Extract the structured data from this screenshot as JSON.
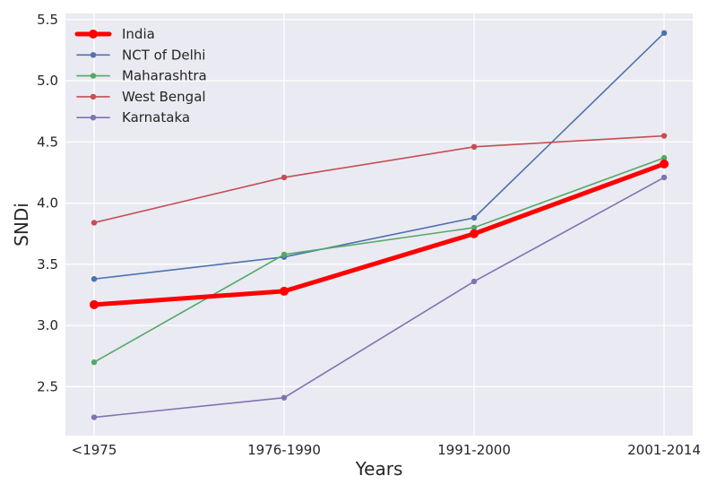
{
  "chart_data": {
    "type": "line",
    "title": "",
    "xlabel": "Years",
    "ylabel": "SNDi",
    "categories": [
      "<1975",
      "1976-1990",
      "1991-2000",
      "2001-2014"
    ],
    "ylim": [
      2.1,
      5.55
    ],
    "yticks": [
      2.5,
      3.0,
      3.5,
      4.0,
      4.5,
      5.0,
      5.5
    ],
    "ytick_labels": [
      "2.5",
      "3.0",
      "3.5",
      "4.0",
      "4.5",
      "5.0",
      "5.5"
    ],
    "grid": true,
    "legend_position": "top-left",
    "series": [
      {
        "name": "India",
        "color": "#ff0000",
        "emphasis": true,
        "values": [
          3.17,
          3.28,
          3.75,
          4.32
        ]
      },
      {
        "name": "NCT of Delhi",
        "color": "#4c72b0",
        "emphasis": false,
        "values": [
          3.38,
          3.56,
          3.88,
          5.39
        ]
      },
      {
        "name": "Maharashtra",
        "color": "#55a868",
        "emphasis": false,
        "values": [
          2.7,
          3.58,
          3.8,
          4.37
        ]
      },
      {
        "name": "West Bengal",
        "color": "#c44e52",
        "emphasis": false,
        "values": [
          3.84,
          4.21,
          4.46,
          4.55
        ]
      },
      {
        "name": "Karnataka",
        "color": "#8172b2",
        "emphasis": false,
        "values": [
          2.25,
          2.41,
          3.36,
          4.21
        ]
      }
    ]
  }
}
